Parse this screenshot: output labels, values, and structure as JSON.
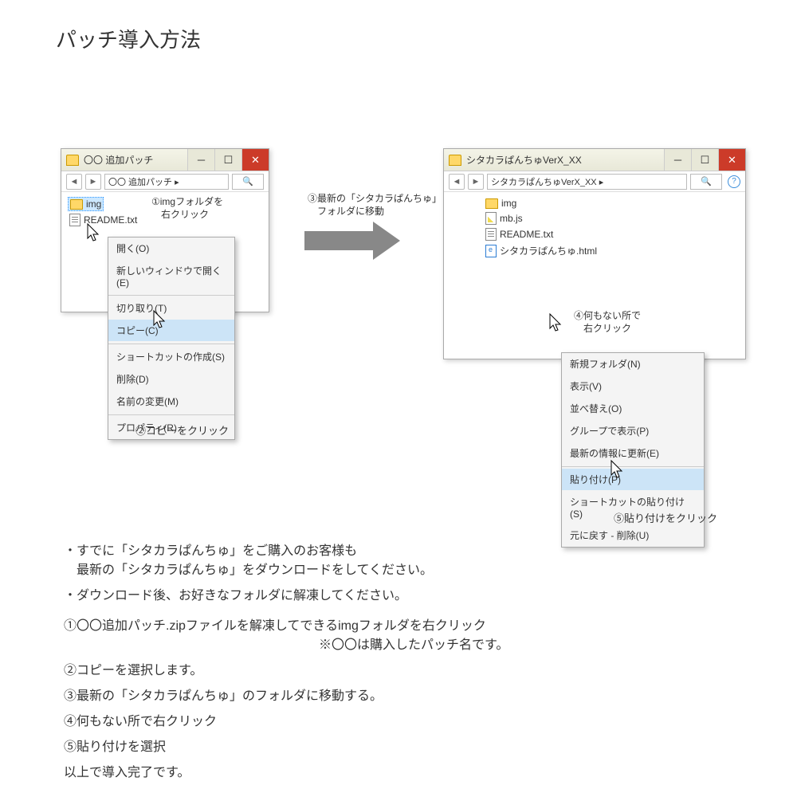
{
  "page_title": "パッチ導入方法",
  "arrow_color": "#888888",
  "window1": {
    "title": "〇〇 追加パッチ",
    "addr": "〇〇 追加パッチ  ▸",
    "files": [
      {
        "icon": "folder",
        "name": "img",
        "selected": true
      },
      {
        "icon": "txt",
        "name": "README.txt",
        "selected": false
      }
    ],
    "annot1": "①imgフォルダを\n　右クリック",
    "caption": "②コピーをクリック"
  },
  "context_menu1": {
    "items": [
      {
        "label": "開く(O)",
        "type": "item"
      },
      {
        "label": "新しいウィンドウで開く(E)",
        "type": "item"
      },
      {
        "type": "sep"
      },
      {
        "label": "切り取り(T)",
        "type": "item"
      },
      {
        "label": "コピー(C)",
        "type": "item",
        "highlighted": true
      },
      {
        "type": "sep"
      },
      {
        "label": "ショートカットの作成(S)",
        "type": "item"
      },
      {
        "label": "削除(D)",
        "type": "item"
      },
      {
        "label": "名前の変更(M)",
        "type": "item"
      },
      {
        "type": "sep"
      },
      {
        "label": "プロパティ(R)",
        "type": "item"
      }
    ]
  },
  "arrow_annot": "③最新の「シタカラぱんちゅ」\n　フォルダに移動",
  "window2": {
    "title": "シタカラぱんちゅVerX_XX",
    "addr": "シタカラぱんちゅVerX_XX  ▸",
    "files": [
      {
        "icon": "folder",
        "name": "img"
      },
      {
        "icon": "js",
        "name": "mb.js"
      },
      {
        "icon": "txt",
        "name": "README.txt"
      },
      {
        "icon": "html",
        "name": "シタカラぱんちゅ.html"
      }
    ],
    "annot4": "④何もない所で\n　右クリック",
    "caption": "⑤貼り付けをクリック"
  },
  "context_menu2": {
    "items": [
      {
        "label": "新規フォルダ(N)",
        "type": "item"
      },
      {
        "label": "表示(V)",
        "type": "item"
      },
      {
        "label": "並べ替え(O)",
        "type": "item"
      },
      {
        "label": "グループで表示(P)",
        "type": "item"
      },
      {
        "label": "最新の情報に更新(E)",
        "type": "item"
      },
      {
        "type": "sep"
      },
      {
        "label": "貼り付け(P)",
        "type": "item",
        "highlighted": true
      },
      {
        "label": "ショートカットの貼り付け(S)",
        "type": "item"
      },
      {
        "label": "元に戻す - 削除(U)",
        "type": "item"
      }
    ]
  },
  "instructions": {
    "bullet1": "・すでに「シタカラぱんちゅ」をご購入のお客様も\n　最新の「シタカラぱんちゅ」をダウンロードをしてください。",
    "bullet2": "・ダウンロード後、お好きなフォルダに解凍してください。",
    "step1": "①〇〇追加パッチ.zipファイルを解凍してできるimgフォルダを右クリック",
    "step1_note": "※〇〇は購入したパッチ名です。",
    "step2": "②コピーを選択します。",
    "step3": "③最新の「シタカラぱんちゅ」のフォルダに移動する。",
    "step4": "④何もない所で右クリック",
    "step5": "⑤貼り付けを選択",
    "done": "以上で導入完了です。"
  }
}
